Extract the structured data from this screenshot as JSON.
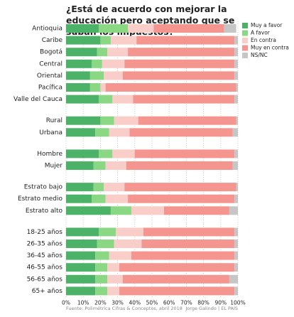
{
  "chart_data": {
    "type": "stacked-bar-horizontal",
    "title": "¿Está de acuerdo con mejorar la educación pero aceptando que se suban los impuestos?",
    "source": "Fuente: Polimétrica Cifras & Conceptos, abril 2018",
    "credit": "Jorge Galindo | EL PAÍS",
    "categories": [
      "Antioquia",
      "Caribe",
      "Bogotá",
      "Central",
      "Oriental",
      "Pacífica",
      "Valle del Cauca",
      "Rural",
      "Urbana",
      "Hombre",
      "Mujer",
      "Estrato bajo",
      "Estrato medio",
      "Estrato alto",
      "18-25 años",
      "26-35 años",
      "36-45 años",
      "46-55 años",
      "56-65 años",
      "65+ años"
    ],
    "series": [
      {
        "name": "Muy a favor",
        "color": "#4cb267",
        "values": [
          19,
          20,
          18,
          15,
          14,
          14,
          19,
          20,
          17,
          19,
          16,
          16,
          15,
          26,
          19,
          18,
          17,
          17,
          17,
          17
        ]
      },
      {
        "name": "A favor",
        "color": "#8ad784",
        "values": [
          17,
          6,
          6,
          6,
          8,
          6,
          8,
          8,
          8,
          8,
          7,
          6,
          8,
          12,
          10,
          10,
          8,
          7,
          7,
          7
        ]
      },
      {
        "name": "En contra",
        "color": "#f9cdc8",
        "values": [
          15,
          15,
          12,
          13,
          11,
          3,
          12,
          14,
          12,
          13,
          12,
          12,
          13,
          19,
          16,
          16,
          13,
          7,
          9,
          7
        ]
      },
      {
        "name": "Muy en contra",
        "color": "#f4968f",
        "values": [
          41,
          57,
          62,
          64,
          65,
          76,
          59,
          57,
          60,
          58,
          62,
          65,
          62,
          38,
          53,
          54,
          60,
          67,
          62,
          67
        ]
      },
      {
        "name": "NS/NC",
        "color": "#c6c6c6",
        "values": [
          7,
          2,
          2,
          2,
          2,
          1,
          2,
          1,
          3,
          2,
          3,
          1,
          2,
          5,
          2,
          2,
          2,
          2,
          5,
          2
        ]
      }
    ],
    "xlim": [
      0,
      100
    ],
    "xticks": [
      {
        "value": 0,
        "label": "0%"
      },
      {
        "value": 10,
        "label": "10%"
      },
      {
        "value": 20,
        "label": "20%"
      },
      {
        "value": 30,
        "label": "30%"
      },
      {
        "value": 40,
        "label": "40%"
      },
      {
        "value": 50,
        "label": "50%"
      },
      {
        "value": 60,
        "label": "60%"
      },
      {
        "value": 70,
        "label": "70%"
      },
      {
        "value": 80,
        "label": "80%"
      },
      {
        "value": 90,
        "label": "90%"
      },
      {
        "value": 100,
        "label": "100%"
      }
    ],
    "grid": true
  }
}
